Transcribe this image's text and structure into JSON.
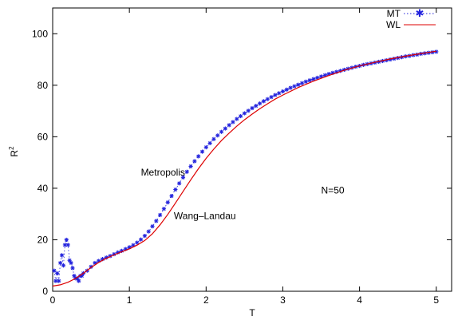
{
  "chart_data": {
    "type": "line",
    "title": "",
    "xlabel": "T",
    "ylabel": "R",
    "ylabel_sup": "2",
    "xlim": [
      0,
      5.2
    ],
    "ylim": [
      0,
      110
    ],
    "xticks": [
      0,
      1,
      2,
      3,
      4,
      5
    ],
    "yticks": [
      0,
      20,
      40,
      60,
      80,
      100
    ],
    "xtick_labels": [
      "0",
      "1",
      "2",
      "3",
      "4",
      "5"
    ],
    "ytick_labels": [
      "0",
      "20",
      "40",
      "60",
      "80",
      "100"
    ],
    "grid": false,
    "legend_position": "top-right",
    "annotations": [
      {
        "text": "Metropolis",
        "x": 1.15,
        "y": 45
      },
      {
        "text": "Wang–Landau",
        "x": 1.58,
        "y": 28
      },
      {
        "text": "N=50",
        "x": 3.5,
        "y": 38
      }
    ],
    "series": [
      {
        "name": "MT",
        "style": "points-dotted",
        "color": "#2222dd",
        "x": [
          0.02,
          0.04,
          0.06,
          0.08,
          0.1,
          0.12,
          0.14,
          0.16,
          0.18,
          0.2,
          0.22,
          0.24,
          0.26,
          0.28,
          0.3,
          0.32,
          0.34,
          0.36,
          0.38,
          0.4,
          0.45,
          0.5,
          0.55,
          0.6,
          0.65,
          0.7,
          0.75,
          0.8,
          0.85,
          0.9,
          0.95,
          1.0,
          1.05,
          1.1,
          1.15,
          1.2,
          1.25,
          1.3,
          1.35,
          1.4,
          1.45,
          1.5,
          1.55,
          1.6,
          1.65,
          1.7,
          1.75,
          1.8,
          1.85,
          1.9,
          1.95,
          2.0,
          2.05,
          2.1,
          2.15,
          2.2,
          2.25,
          2.3,
          2.35,
          2.4,
          2.45,
          2.5,
          2.55,
          2.6,
          2.65,
          2.7,
          2.75,
          2.8,
          2.85,
          2.9,
          2.95,
          3.0,
          3.05,
          3.1,
          3.15,
          3.2,
          3.25,
          3.3,
          3.35,
          3.4,
          3.45,
          3.5,
          3.55,
          3.6,
          3.65,
          3.7,
          3.75,
          3.8,
          3.85,
          3.9,
          3.95,
          4.0,
          4.05,
          4.1,
          4.15,
          4.2,
          4.25,
          4.3,
          4.35,
          4.4,
          4.45,
          4.5,
          4.55,
          4.6,
          4.65,
          4.7,
          4.75,
          4.8,
          4.85,
          4.9,
          4.95,
          5.0
        ],
        "values": [
          8,
          4,
          7,
          4,
          11,
          14,
          10,
          18,
          20,
          18,
          12,
          11,
          9,
          6,
          5,
          5,
          4,
          6,
          6,
          7,
          8,
          9.5,
          11,
          11.8,
          12.5,
          13.1,
          13.7,
          14.4,
          15.1,
          15.7,
          16.4,
          17.1,
          17.9,
          18.9,
          20.1,
          21.5,
          23.2,
          25.2,
          27.3,
          29.6,
          32.0,
          34.5,
          37.0,
          39.5,
          41.9,
          44.2,
          46.4,
          48.5,
          50.5,
          52.4,
          54.2,
          55.9,
          57.5,
          59.1,
          60.5,
          61.9,
          63.2,
          64.5,
          65.7,
          66.9,
          68.0,
          69.1,
          70.1,
          71.1,
          72.0,
          72.9,
          73.8,
          74.6,
          75.4,
          76.2,
          76.9,
          77.6,
          78.3,
          79.0,
          79.6,
          80.2,
          80.8,
          81.4,
          81.9,
          82.4,
          82.9,
          83.4,
          83.9,
          84.4,
          84.8,
          85.2,
          85.6,
          86.0,
          86.4,
          86.8,
          87.2,
          87.5,
          87.9,
          88.2,
          88.5,
          88.8,
          89.1,
          89.4,
          89.7,
          90.0,
          90.3,
          90.6,
          90.9,
          91.2,
          91.4,
          91.7,
          91.9,
          92.2,
          92.4,
          92.6,
          92.8,
          93.0
        ]
      },
      {
        "name": "WL",
        "style": "line",
        "color": "#dd0000",
        "x": [
          0.0,
          0.1,
          0.2,
          0.3,
          0.4,
          0.5,
          0.6,
          0.7,
          0.8,
          0.9,
          1.0,
          1.1,
          1.2,
          1.3,
          1.4,
          1.5,
          1.6,
          1.7,
          1.8,
          1.9,
          2.0,
          2.1,
          2.2,
          2.3,
          2.4,
          2.5,
          2.6,
          2.7,
          2.8,
          2.9,
          3.0,
          3.2,
          3.4,
          3.6,
          3.8,
          4.0,
          4.2,
          4.4,
          4.6,
          4.8,
          5.0
        ],
        "values": [
          2.0,
          2.5,
          3.5,
          5.0,
          7.0,
          9.2,
          11.2,
          12.8,
          14.1,
          15.3,
          16.5,
          17.9,
          19.7,
          22.3,
          25.8,
          29.8,
          34.2,
          38.8,
          43.3,
          47.6,
          51.6,
          55.2,
          58.5,
          61.4,
          64.1,
          66.6,
          68.8,
          70.9,
          72.8,
          74.6,
          76.2,
          79.1,
          81.6,
          83.8,
          85.8,
          87.5,
          88.9,
          90.2,
          91.3,
          92.3,
          93.2
        ]
      }
    ]
  }
}
